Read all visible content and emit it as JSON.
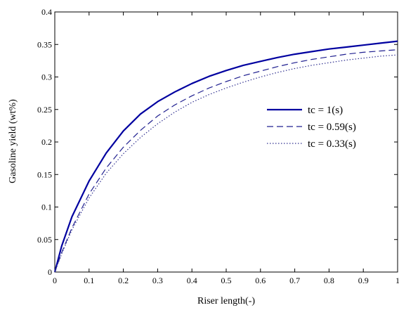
{
  "chart_data": {
    "type": "line",
    "title": "",
    "xlabel": "Riser length(-)",
    "ylabel": "Gasoline yield (wt%)",
    "xlim": [
      0,
      1
    ],
    "ylim": [
      0,
      0.4
    ],
    "xticks": [
      0,
      0.1,
      0.2,
      0.3,
      0.4,
      0.5,
      0.6,
      0.7,
      0.8,
      0.9,
      1
    ],
    "xtick_labels": [
      "0",
      "0.1",
      "0.2",
      "0.3",
      "0.4",
      "0.5",
      "0.6",
      "0.7",
      "0.8",
      "0.9",
      "1"
    ],
    "yticks": [
      0,
      0.05,
      0.1,
      0.15,
      0.2,
      0.25,
      0.3,
      0.35,
      0.4
    ],
    "ytick_labels": [
      "0",
      "0.05",
      "0.1",
      "0.15",
      "0.2",
      "0.25",
      "0.3",
      "0.35",
      "0.4"
    ],
    "grid": false,
    "legend_position": "right-center",
    "x": [
      0,
      0.02,
      0.05,
      0.1,
      0.15,
      0.2,
      0.25,
      0.3,
      0.35,
      0.4,
      0.45,
      0.5,
      0.55,
      0.6,
      0.65,
      0.7,
      0.75,
      0.8,
      0.85,
      0.9,
      0.95,
      1
    ],
    "series": [
      {
        "name": "tc = 1(s)",
        "color": "#0000a0",
        "style": "solid",
        "values": [
          0,
          0.04,
          0.085,
          0.14,
          0.183,
          0.217,
          0.243,
          0.262,
          0.277,
          0.29,
          0.301,
          0.31,
          0.318,
          0.324,
          0.33,
          0.335,
          0.339,
          0.343,
          0.346,
          0.349,
          0.352,
          0.355
        ]
      },
      {
        "name": "tc = 0.59(s)",
        "color": "#202090",
        "style": "dashed",
        "values": [
          0,
          0.03,
          0.068,
          0.12,
          0.16,
          0.192,
          0.218,
          0.24,
          0.257,
          0.271,
          0.283,
          0.293,
          0.302,
          0.309,
          0.316,
          0.322,
          0.327,
          0.331,
          0.335,
          0.338,
          0.34,
          0.342
        ]
      },
      {
        "name": "tc = 0.33(s)",
        "color": "#303090",
        "style": "dotted",
        "values": [
          0,
          0.028,
          0.065,
          0.114,
          0.152,
          0.182,
          0.207,
          0.228,
          0.246,
          0.261,
          0.273,
          0.283,
          0.292,
          0.3,
          0.307,
          0.313,
          0.318,
          0.322,
          0.326,
          0.329,
          0.332,
          0.334
        ]
      }
    ]
  }
}
